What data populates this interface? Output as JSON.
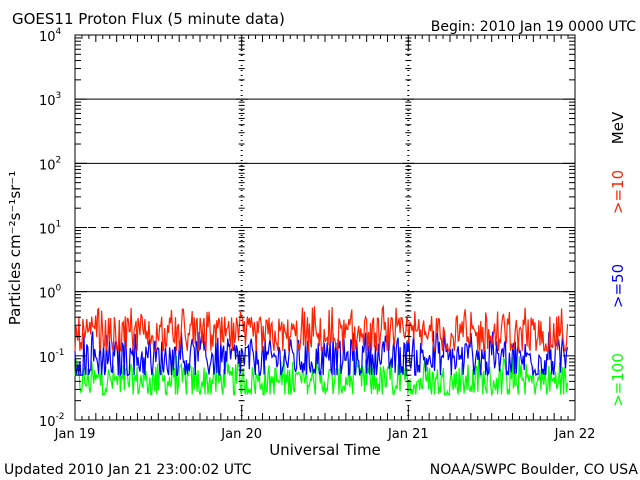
{
  "chart_data": {
    "type": "line",
    "title": "GOES11 Proton Flux (5 minute data)",
    "begin": "Begin: 2010 Jan 19 0000 UTC",
    "xlabel": "Universal Time",
    "ylabel": "Particles cm⁻²s⁻¹sr⁻¹",
    "units_label": "MeV",
    "footer_left": "Updated 2010 Jan 21 23:00:02 UTC",
    "footer_right": "NOAA/SWPC Boulder, CO USA",
    "x_ticks": [
      "Jan 19",
      "Jan 20",
      "Jan 21",
      "Jan 22"
    ],
    "x_range_days": [
      0,
      3
    ],
    "y_scale": "log",
    "ylim": [
      0.01,
      10000
    ],
    "y_ticks": [
      {
        "base": "10",
        "exp": "-2"
      },
      {
        "base": "10",
        "exp": "-1"
      },
      {
        "base": "10",
        "exp": "0"
      },
      {
        "base": "10",
        "exp": "1"
      },
      {
        "base": "10",
        "exp": "2"
      },
      {
        "base": "10",
        "exp": "3"
      },
      {
        "base": "10",
        "exp": "4"
      }
    ],
    "threshold_lines": [
      {
        "value": 1,
        "style": "solid"
      },
      {
        "value": 10,
        "style": "dashed"
      },
      {
        "value": 100,
        "style": "solid"
      },
      {
        "value": 1000,
        "style": "solid"
      }
    ],
    "series": [
      {
        "name": ">=10",
        "color": "#ff2200",
        "typical": 0.2,
        "min": 0.12,
        "max": 0.6
      },
      {
        "name": ">=50",
        "color": "#0000ff",
        "typical": 0.09,
        "min": 0.05,
        "max": 0.25
      },
      {
        "name": ">=100",
        "color": "#00ff00",
        "typical": 0.04,
        "min": 0.025,
        "max": 0.1
      }
    ]
  }
}
